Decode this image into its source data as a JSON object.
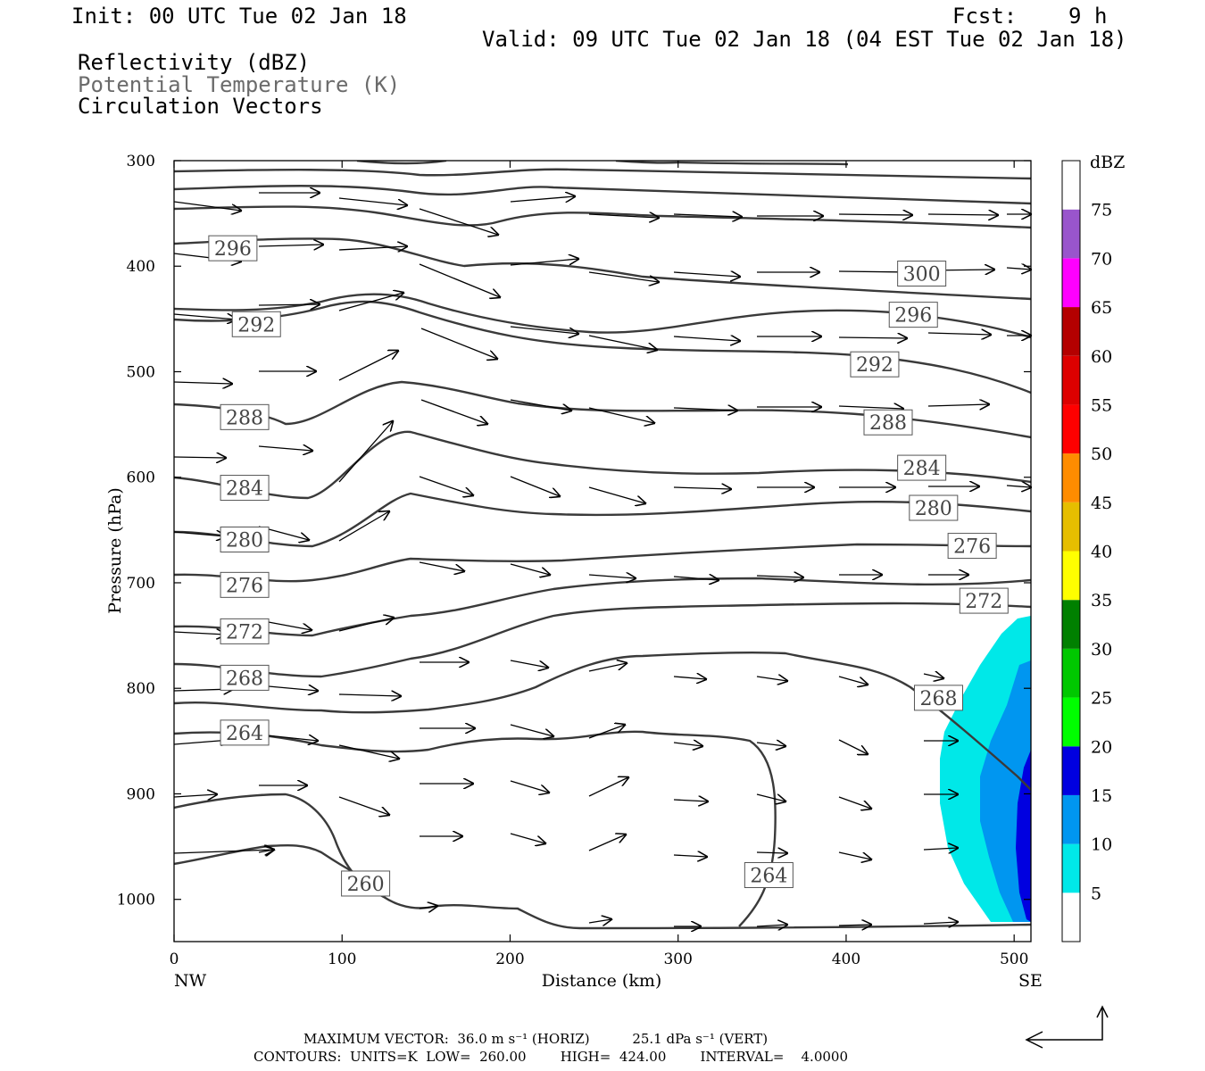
{
  "header": {
    "init": "Init: 00 UTC Tue 02 Jan 18",
    "fcst": "Fcst:    9 h",
    "valid": "Valid: 09 UTC Tue 02 Jan 18 (04 EST Tue 02 Jan 18)",
    "field1": "Reflectivity (dBZ)",
    "field2": "Potential Temperature (K)",
    "field3": "Circulation Vectors"
  },
  "footer": {
    "max_vector": "MAXIMUM VECTOR:  36.0 m s⁻¹ (HORIZ)          25.1 dPa s⁻¹ (VERT)",
    "contours": "CONTOURS:  UNITS=K  LOW=  260.00        HIGH=  424.00        INTERVAL=    4.0000"
  },
  "colors": {
    "contour": "#333333",
    "cyan": "#00e8e8",
    "lightblue": "#0096f0",
    "blue": "#0000e0"
  },
  "chart_data": {
    "type": "contour",
    "xlabel": "Distance (km)",
    "ylabel": "Pressure (hPa)",
    "xlim": [
      0,
      510
    ],
    "ylim": [
      300,
      1040
    ],
    "x_ticks": [
      "0",
      "100",
      "200",
      "300",
      "400",
      "500"
    ],
    "y_ticks": [
      "300",
      "400",
      "500",
      "600",
      "700",
      "800",
      "900",
      "1000"
    ],
    "x_end_labels": {
      "left": "NW",
      "right": "SE"
    },
    "colorbar": {
      "title": "dBZ",
      "labels": [
        "5",
        "10",
        "15",
        "20",
        "25",
        "30",
        "35",
        "40",
        "45",
        "50",
        "55",
        "60",
        "65",
        "70",
        "75"
      ],
      "colors": [
        "#ffffff",
        "#00e8e8",
        "#0096f0",
        "#0000e0",
        "#00ff00",
        "#00c800",
        "#008000",
        "#ffff00",
        "#e6be00",
        "#ff8c00",
        "#ff0000",
        "#dd0000",
        "#b40000",
        "#ff00ff",
        "#9955cc",
        "#ffffff"
      ]
    },
    "contour_labels": [
      {
        "text": "296",
        "x": 35,
        "p": 383
      },
      {
        "text": "292",
        "x": 49,
        "p": 455
      },
      {
        "text": "288",
        "x": 42,
        "p": 543
      },
      {
        "text": "284",
        "x": 42,
        "p": 610
      },
      {
        "text": "280",
        "x": 42,
        "p": 659
      },
      {
        "text": "276",
        "x": 42,
        "p": 702
      },
      {
        "text": "272",
        "x": 42,
        "p": 746
      },
      {
        "text": "268",
        "x": 42,
        "p": 790
      },
      {
        "text": "264",
        "x": 42,
        "p": 842
      },
      {
        "text": "260",
        "x": 114,
        "p": 985
      },
      {
        "text": "264",
        "x": 354,
        "p": 977
      },
      {
        "text": "268",
        "x": 455,
        "p": 809
      },
      {
        "text": "272",
        "x": 482,
        "p": 717
      },
      {
        "text": "276",
        "x": 475,
        "p": 665
      },
      {
        "text": "280",
        "x": 452,
        "p": 629
      },
      {
        "text": "284",
        "x": 445,
        "p": 591
      },
      {
        "text": "288",
        "x": 425,
        "p": 548
      },
      {
        "text": "292",
        "x": 417,
        "p": 493
      },
      {
        "text": "296",
        "x": 440,
        "p": 446
      },
      {
        "text": "300",
        "x": 445,
        "p": 407
      }
    ]
  }
}
